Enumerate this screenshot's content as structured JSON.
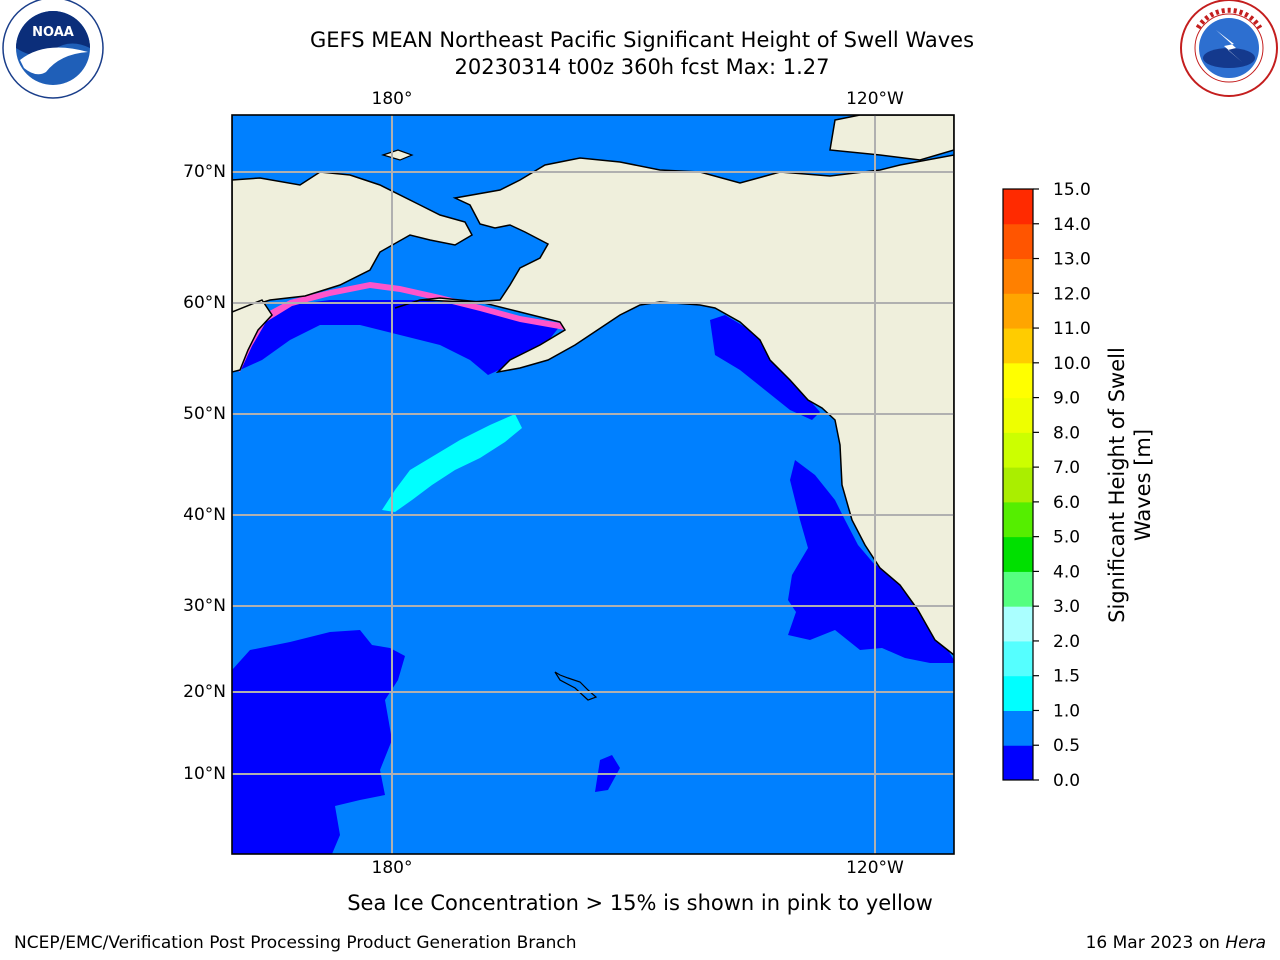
{
  "header": {
    "title_line1": "GEFS MEAN Northeast Pacific Significant Height of Swell Waves",
    "title_line2": "20230314 t00z 360h fcst   Max: 1.27"
  },
  "logos": {
    "left": {
      "name": "noara-logo",
      "text": "NOAA",
      "ring_text": "NATIONAL OCEANIC AND ATMOSPHERIC ADMINISTRATION · U.S. DEPARTMENT OF COMMERCE"
    },
    "right": {
      "name": "nws-logo",
      "ring_text": "NATIONAL WEATHER SERVICE"
    }
  },
  "map": {
    "lon_labels_top": [
      "180°",
      "120°W"
    ],
    "lon_labels_bottom": [
      "180°",
      "120°W"
    ],
    "lat_labels": [
      "70°N",
      "60°N",
      "50°N",
      "40°N",
      "30°N",
      "20°N",
      "10°N"
    ],
    "colors": {
      "land": "#efefdc",
      "ocean_0_5_1_0": "#0080ff",
      "ocean_0_0_5": "#0000ff",
      "swell_1_0_1_5": "#00ffff",
      "ice": "#ff55cc",
      "grid": "#b0b0b0"
    }
  },
  "colorbar": {
    "label": "Significant Height of Swell Waves [m]",
    "ticks": [
      "0.0",
      "0.5",
      "1.0",
      "1.5",
      "2.0",
      "3.0",
      "4.0",
      "5.0",
      "6.0",
      "7.0",
      "8.0",
      "9.0",
      "10.0",
      "11.0",
      "12.0",
      "13.0",
      "14.0",
      "15.0"
    ],
    "colors": [
      "#0000ff",
      "#0080ff",
      "#00ffff",
      "#55ffff",
      "#aaffff",
      "#55ff80",
      "#00e000",
      "#55ee00",
      "#aaee00",
      "#ccff00",
      "#eeff00",
      "#ffff00",
      "#ffcc00",
      "#ffa500",
      "#ff8000",
      "#ff5500",
      "#ff2a00",
      "#ff0000"
    ]
  },
  "note": "Sea Ice Concentration > 15% is shown in pink to yellow",
  "footer": {
    "left": "NCEP/EMC/Verification Post Processing Product Generation Branch",
    "right_date": "16 Mar 2023 on ",
    "right_host": "Hera"
  }
}
